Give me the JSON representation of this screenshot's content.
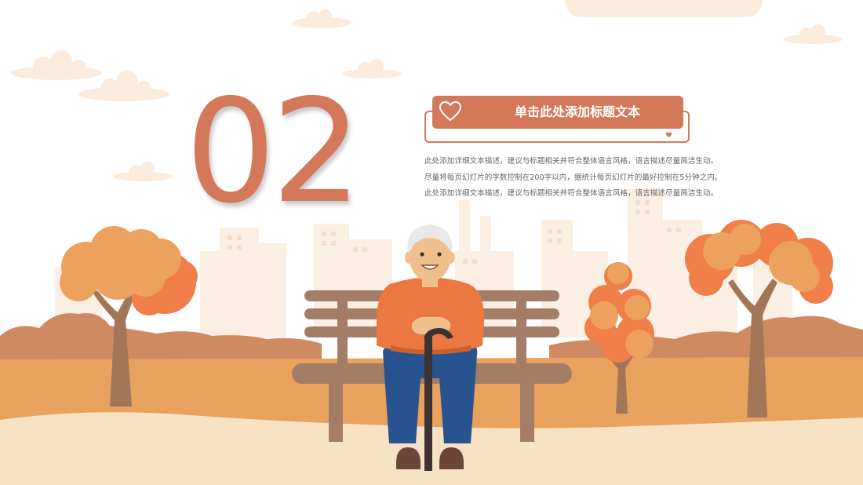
{
  "slide": {
    "number": "02",
    "title": "单击此处添加标题文本",
    "description_lines": [
      "此处添加详细文本描述，建议与标题相关并符合整体语言风格，语言描述尽量简洁生动。",
      "尽量将每页幻灯片的字数控制在200字以内，据统计每页幻灯片的最好控制在5分钟之内。",
      "此处添加详细文本描述，建议与标题相关并符合整体语言风格，语言描述尽量简洁生动。"
    ]
  },
  "colors": {
    "accent": "#d4785a",
    "ground_orange": "#e9a15e",
    "ground_cream": "#f7e3c4",
    "bush_brown": "#cf8a62",
    "skyline": "#fbeee3",
    "cloud": "#fbebdc",
    "bench": "#a47d67",
    "trunk": "#a37657",
    "foliage_light": "#eda15e",
    "foliage_dark": "#f07f49",
    "sweater": "#ea7840",
    "jeans": "#28538f",
    "skin": "#efc08e",
    "hair": "#e8e8e8"
  },
  "icons": {
    "title_heart": "heart-outline-icon",
    "corner_heart": "heart-icon"
  }
}
